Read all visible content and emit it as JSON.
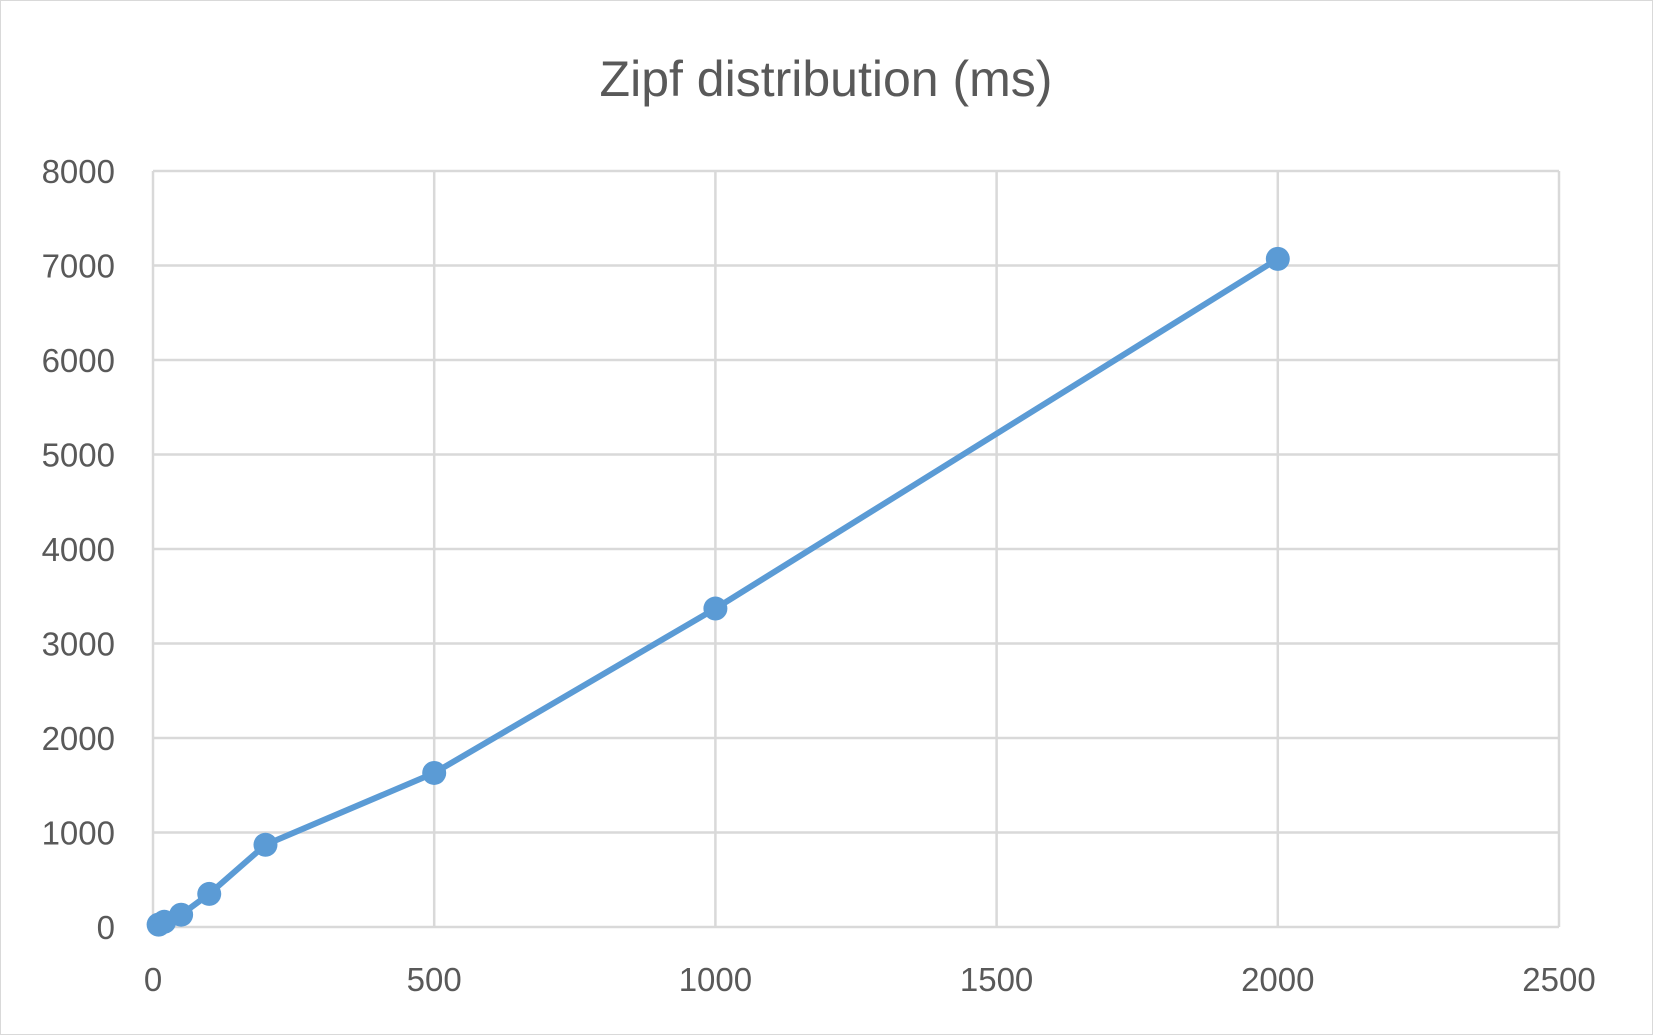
{
  "chart_data": {
    "type": "scatter",
    "title": "Zipf distribution (ms)",
    "xlabel": "",
    "ylabel": "",
    "xlim": [
      0,
      2500
    ],
    "ylim": [
      0,
      8000
    ],
    "x_ticks": [
      "0",
      "500",
      "1000",
      "1500",
      "2000",
      "2500"
    ],
    "y_ticks": [
      "0",
      "1000",
      "2000",
      "3000",
      "4000",
      "5000",
      "6000",
      "7000",
      "8000"
    ],
    "grid": true,
    "legend": "none",
    "series_color": "#5b9bd5",
    "series": [
      {
        "x": [
          10,
          20,
          50,
          100,
          200,
          500,
          1000,
          2000
        ],
        "y": [
          25,
          55,
          130,
          350,
          870,
          1630,
          3370,
          7070
        ]
      }
    ]
  }
}
